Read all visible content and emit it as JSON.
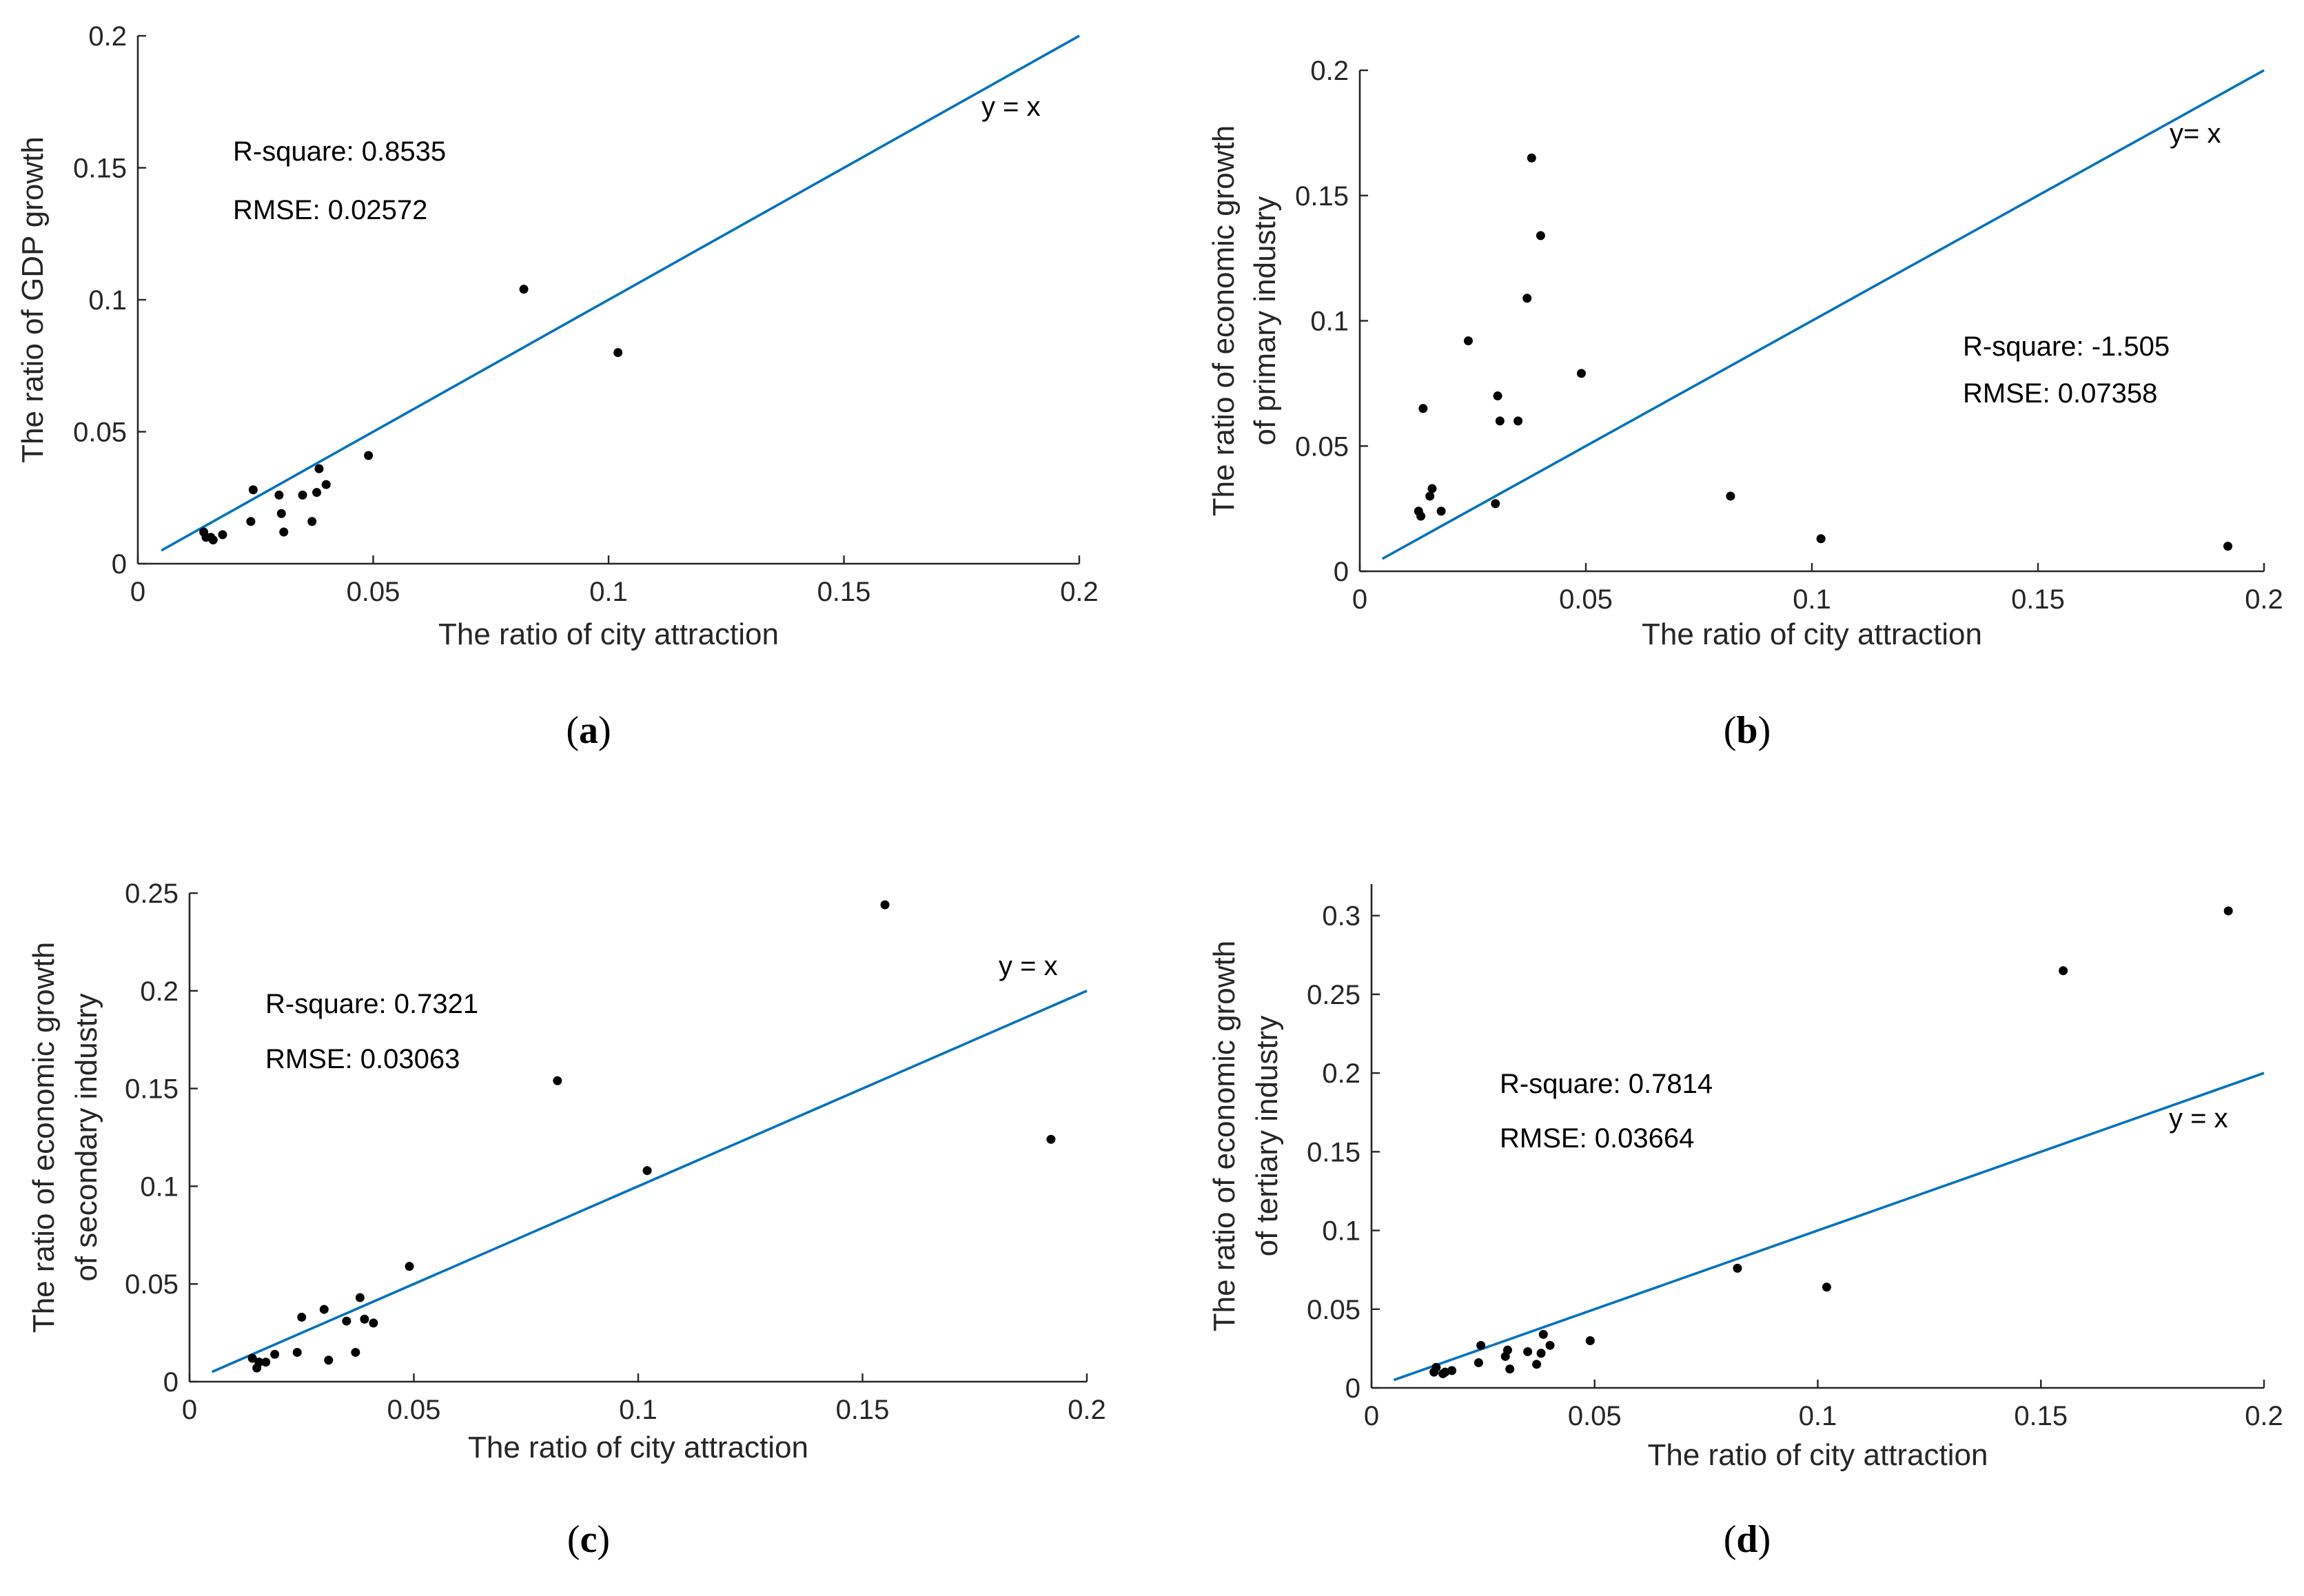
{
  "colors": {
    "line": "#0072BD",
    "points": "#000000",
    "axes": "#262626"
  },
  "chart_data": [
    {
      "id": "a",
      "type": "scatter",
      "panel_label": {
        "open": "(",
        "letter": "a",
        "close": ")"
      },
      "xlabel": "The ratio of city attraction",
      "ylabel": [
        "The ratio of GDP growth"
      ],
      "xlim": [
        0,
        0.2
      ],
      "ylim": [
        0,
        0.2
      ],
      "xticks": [
        0,
        0.05,
        0.1,
        0.15,
        0.2
      ],
      "xtick_labels": [
        "0",
        "0.05",
        "0.1",
        "0.15",
        "0.2"
      ],
      "yticks": [
        0,
        0.05,
        0.1,
        0.15,
        0.2
      ],
      "ytick_labels": [
        "0",
        "0.05",
        "0.1",
        "0.15",
        "0.2"
      ],
      "reference_line": {
        "label": "y = x",
        "from": 0.005,
        "to": 0.2
      },
      "stats": [
        "R-square: 0.8535",
        "RMSE: 0.02572"
      ],
      "points": [
        [
          0.014,
          0.012
        ],
        [
          0.0145,
          0.01
        ],
        [
          0.016,
          0.009
        ],
        [
          0.0155,
          0.01
        ],
        [
          0.018,
          0.011
        ],
        [
          0.024,
          0.016
        ],
        [
          0.0245,
          0.028
        ],
        [
          0.03,
          0.026
        ],
        [
          0.0305,
          0.019
        ],
        [
          0.031,
          0.012
        ],
        [
          0.035,
          0.026
        ],
        [
          0.037,
          0.016
        ],
        [
          0.038,
          0.027
        ],
        [
          0.0385,
          0.036
        ],
        [
          0.04,
          0.03
        ],
        [
          0.049,
          0.041
        ],
        [
          0.082,
          0.104
        ],
        [
          0.102,
          0.08
        ]
      ]
    },
    {
      "id": "b",
      "type": "scatter",
      "panel_label": {
        "open": "(",
        "letter": "b",
        "close": ")"
      },
      "xlabel": "The ratio of city attraction",
      "ylabel": [
        "The ratio of economic growth",
        "of primary industry"
      ],
      "xlim": [
        0,
        0.2
      ],
      "ylim": [
        0,
        0.2
      ],
      "xticks": [
        0,
        0.05,
        0.1,
        0.15,
        0.2
      ],
      "xtick_labels": [
        "0",
        "0.05",
        "0.1",
        "0.15",
        "0.2"
      ],
      "yticks": [
        0,
        0.05,
        0.1,
        0.15,
        0.2
      ],
      "ytick_labels": [
        "0",
        "0.05",
        "0.1",
        "0.15",
        "0.2"
      ],
      "reference_line": {
        "label": "y= x",
        "from": 0.005,
        "to": 0.2
      },
      "stats": [
        "R-square: -1.505",
        "RMSE: 0.07358"
      ],
      "points": [
        [
          0.013,
          0.024
        ],
        [
          0.0135,
          0.022
        ],
        [
          0.014,
          0.065
        ],
        [
          0.0155,
          0.03
        ],
        [
          0.016,
          0.033
        ],
        [
          0.018,
          0.024
        ],
        [
          0.024,
          0.092
        ],
        [
          0.03,
          0.027
        ],
        [
          0.0305,
          0.07
        ],
        [
          0.031,
          0.06
        ],
        [
          0.035,
          0.06
        ],
        [
          0.037,
          0.109
        ],
        [
          0.038,
          0.165
        ],
        [
          0.04,
          0.134
        ],
        [
          0.049,
          0.079
        ],
        [
          0.082,
          0.03
        ],
        [
          0.102,
          0.013
        ],
        [
          0.192,
          0.01
        ]
      ]
    },
    {
      "id": "c",
      "type": "scatter",
      "panel_label": {
        "open": "(",
        "letter": "c",
        "close": ")"
      },
      "xlabel": "The ratio of city attraction",
      "ylabel": [
        "The ratio of economic growth",
        "of secondary industry"
      ],
      "xlim": [
        0,
        0.2
      ],
      "ylim": [
        0,
        0.25
      ],
      "xticks": [
        0,
        0.05,
        0.1,
        0.15,
        0.2
      ],
      "xtick_labels": [
        "0",
        "0.05",
        "0.1",
        "0.15",
        "0.2"
      ],
      "yticks": [
        0,
        0.05,
        0.1,
        0.15,
        0.2,
        0.25
      ],
      "ytick_labels": [
        "0",
        "0.05",
        "0.1",
        "0.15",
        "0.2",
        "0.25"
      ],
      "reference_line": {
        "label": "y = x",
        "from": 0.005,
        "to": 0.2
      },
      "stats": [
        "R-square: 0.7321",
        "RMSE: 0.03063"
      ],
      "points": [
        [
          0.014,
          0.012
        ],
        [
          0.015,
          0.007
        ],
        [
          0.0155,
          0.01
        ],
        [
          0.017,
          0.01
        ],
        [
          0.019,
          0.014
        ],
        [
          0.024,
          0.015
        ],
        [
          0.025,
          0.033
        ],
        [
          0.03,
          0.037
        ],
        [
          0.031,
          0.011
        ],
        [
          0.035,
          0.031
        ],
        [
          0.037,
          0.015
        ],
        [
          0.038,
          0.043
        ],
        [
          0.039,
          0.032
        ],
        [
          0.041,
          0.03
        ],
        [
          0.049,
          0.059
        ],
        [
          0.082,
          0.154
        ],
        [
          0.102,
          0.108
        ],
        [
          0.155,
          0.244
        ],
        [
          0.192,
          0.124
        ]
      ]
    },
    {
      "id": "d",
      "type": "scatter",
      "panel_label": {
        "open": "(",
        "letter": "d",
        "close": ")"
      },
      "xlabel": "The ratio of city attraction",
      "ylabel": [
        "The ratio of economic growth",
        "of tertiary industry"
      ],
      "xlim": [
        0,
        0.2
      ],
      "ylim": [
        0,
        0.32
      ],
      "xticks": [
        0,
        0.05,
        0.1,
        0.15,
        0.2
      ],
      "xtick_labels": [
        "0",
        "0.05",
        "0.1",
        "0.15",
        "0.2"
      ],
      "yticks": [
        0,
        0.05,
        0.1,
        0.15,
        0.2,
        0.25,
        0.3
      ],
      "ytick_labels": [
        "0",
        "0.05",
        "0.1",
        "0.15",
        "0.2",
        "0.25",
        "0.3"
      ],
      "reference_line": {
        "label": "y = x",
        "from": 0.005,
        "to": 0.2
      },
      "stats": [
        "R-square: 0.7814",
        "RMSE: 0.03664"
      ],
      "points": [
        [
          0.014,
          0.01
        ],
        [
          0.0145,
          0.013
        ],
        [
          0.016,
          0.009
        ],
        [
          0.0165,
          0.01
        ],
        [
          0.018,
          0.011
        ],
        [
          0.024,
          0.016
        ],
        [
          0.0245,
          0.027
        ],
        [
          0.03,
          0.02
        ],
        [
          0.0305,
          0.024
        ],
        [
          0.031,
          0.012
        ],
        [
          0.035,
          0.023
        ],
        [
          0.037,
          0.015
        ],
        [
          0.038,
          0.022
        ],
        [
          0.0385,
          0.034
        ],
        [
          0.04,
          0.027
        ],
        [
          0.049,
          0.03
        ],
        [
          0.082,
          0.076
        ],
        [
          0.102,
          0.064
        ],
        [
          0.155,
          0.265
        ],
        [
          0.192,
          0.303
        ]
      ]
    }
  ]
}
